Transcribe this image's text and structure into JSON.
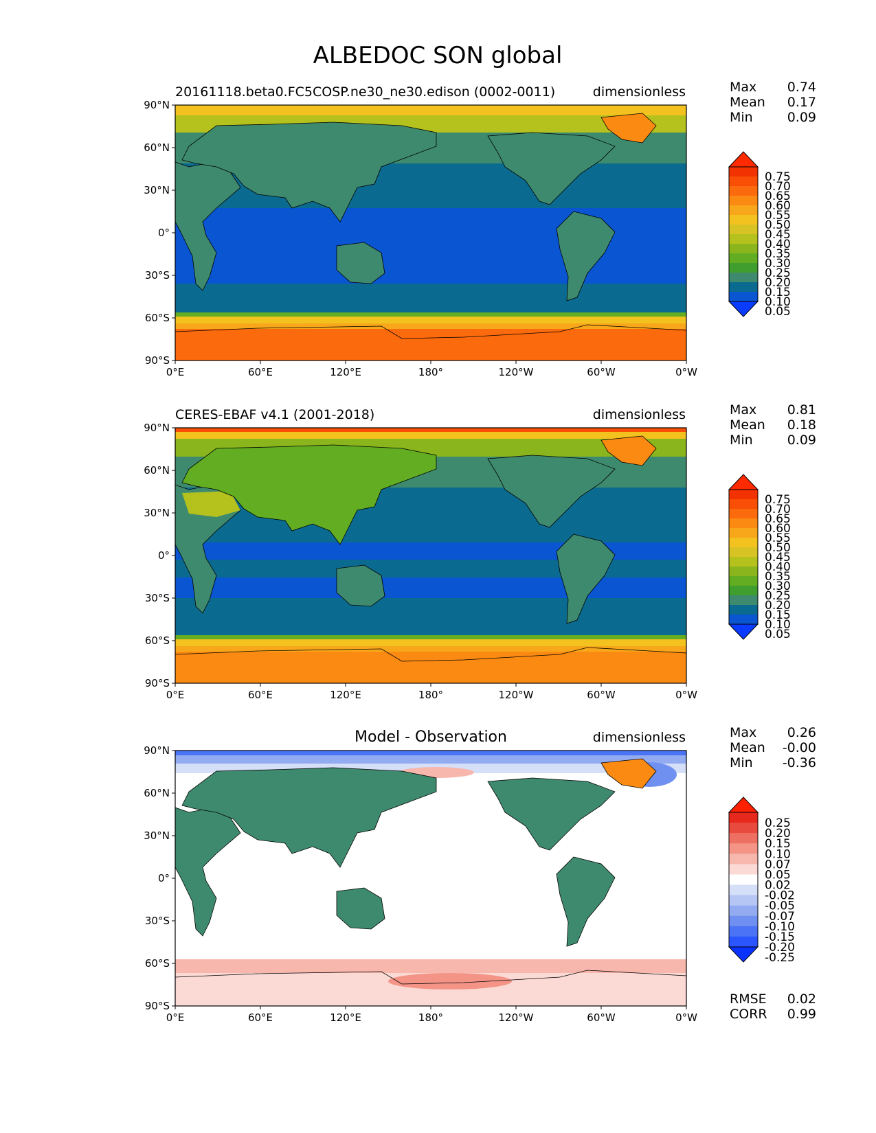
{
  "suptitle": "ALBEDOC SON global",
  "axes": {
    "lat_ticks": [
      "90°N",
      "60°N",
      "30°N",
      "0°",
      "30°S",
      "60°S",
      "90°S"
    ],
    "lon_ticks": [
      "0°E",
      "60°E",
      "120°E",
      "180°",
      "120°W",
      "60°W",
      "0°W"
    ]
  },
  "colors": {
    "field": [
      "#0a3cff",
      "#0a55d2",
      "#0b6a8f",
      "#3e8a6e",
      "#3f9e2e",
      "#62ad22",
      "#8bb51c",
      "#b5c21d",
      "#d8c324",
      "#f3c21f",
      "#f9a71a",
      "#fb8a13",
      "#fb6a0c",
      "#f84e05",
      "#f23200",
      "#ff2a00"
    ],
    "diff": [
      "#0a32ff",
      "#2a55ff",
      "#4a73f5",
      "#6f90f0",
      "#93abf1",
      "#b5c5f4",
      "#d6dff8",
      "#ffffff",
      "#fbd9d4",
      "#f7b7ad",
      "#f39487",
      "#ee7063",
      "#e94a3e",
      "#e7281d",
      "#ff2000"
    ]
  },
  "panels": [
    {
      "left_title": "20161118.beta0.FC5COSP.ne30_ne30.edison (0002-0011)",
      "center_title": "",
      "units": "dimensionless",
      "stats": [
        {
          "label": "Max",
          "value": "0.74"
        },
        {
          "label": "Mean",
          "value": "0.17"
        },
        {
          "label": "Min",
          "value": "0.09"
        }
      ],
      "colorbar": [
        "0.75",
        "0.70",
        "0.65",
        "0.60",
        "0.55",
        "0.50",
        "0.45",
        "0.40",
        "0.35",
        "0.30",
        "0.25",
        "0.20",
        "0.15",
        "0.10",
        "0.05"
      ]
    },
    {
      "left_title": "CERES-EBAF v4.1 (2001-2018)",
      "center_title": "",
      "units": "dimensionless",
      "stats": [
        {
          "label": "Max",
          "value": "0.81"
        },
        {
          "label": "Mean",
          "value": "0.18"
        },
        {
          "label": "Min",
          "value": "0.09"
        }
      ],
      "colorbar": [
        "0.75",
        "0.70",
        "0.65",
        "0.60",
        "0.55",
        "0.50",
        "0.45",
        "0.40",
        "0.35",
        "0.30",
        "0.25",
        "0.20",
        "0.15",
        "0.10",
        "0.05"
      ]
    },
    {
      "left_title": "",
      "center_title": "Model - Observation",
      "units": "dimensionless",
      "stats": [
        {
          "label": "Max",
          "value": "0.26"
        },
        {
          "label": "Mean",
          "value": "-0.00"
        },
        {
          "label": "Min",
          "value": "-0.36"
        }
      ],
      "colorbar": [
        "0.25",
        "0.20",
        "0.15",
        "0.10",
        "0.07",
        "0.05",
        "0.02",
        "-0.02",
        "-0.05",
        "-0.07",
        "-0.10",
        "-0.15",
        "-0.20",
        "-0.25"
      ],
      "metrics": [
        {
          "label": "RMSE",
          "value": "0.02"
        },
        {
          "label": "CORR",
          "value": "0.99"
        }
      ]
    }
  ],
  "chart_data": [
    {
      "type": "heatmap",
      "title": "20161118.beta0.FC5COSP.ne30_ne30.edison (0002-0011)",
      "xlim": [
        0,
        360
      ],
      "ylim": [
        -90,
        90
      ],
      "levels": [
        0.05,
        0.1,
        0.15,
        0.2,
        0.25,
        0.3,
        0.35,
        0.4,
        0.45,
        0.5,
        0.55,
        0.6,
        0.65,
        0.7,
        0.75
      ],
      "zonal_profile": {
        "lat": [
          90,
          80,
          70,
          60,
          50,
          40,
          30,
          20,
          10,
          0,
          -10,
          -20,
          -30,
          -40,
          -50,
          -60,
          -70,
          -80,
          -90
        ],
        "ocean_value": [
          0.52,
          0.5,
          0.35,
          0.22,
          0.2,
          0.15,
          0.12,
          0.09,
          0.09,
          0.09,
          0.09,
          0.11,
          0.14,
          0.15,
          0.16,
          0.5,
          0.66,
          0.7,
          0.7
        ]
      },
      "max": 0.74,
      "mean": 0.17,
      "min": 0.09
    },
    {
      "type": "heatmap",
      "title": "CERES-EBAF v4.1 (2001-2018)",
      "xlim": [
        0,
        360
      ],
      "ylim": [
        -90,
        90
      ],
      "levels": [
        0.05,
        0.1,
        0.15,
        0.2,
        0.25,
        0.3,
        0.35,
        0.4,
        0.45,
        0.5,
        0.55,
        0.6,
        0.65,
        0.7,
        0.75
      ],
      "zonal_profile": {
        "lat": [
          90,
          80,
          70,
          60,
          50,
          40,
          30,
          20,
          10,
          0,
          -10,
          -20,
          -30,
          -40,
          -50,
          -60,
          -70,
          -80,
          -90
        ],
        "ocean_value": [
          0.55,
          0.5,
          0.36,
          0.24,
          0.22,
          0.16,
          0.13,
          0.12,
          0.1,
          0.11,
          0.12,
          0.13,
          0.14,
          0.15,
          0.17,
          0.52,
          0.66,
          0.68,
          0.68
        ]
      },
      "max": 0.81,
      "mean": 0.18,
      "min": 0.09
    },
    {
      "type": "heatmap",
      "title": "Model - Observation",
      "xlim": [
        0,
        360
      ],
      "ylim": [
        -90,
        90
      ],
      "levels": [
        -0.25,
        -0.2,
        -0.15,
        -0.1,
        -0.07,
        -0.05,
        -0.02,
        0.02,
        0.05,
        0.07,
        0.1,
        0.15,
        0.2,
        0.25
      ],
      "zonal_profile": {
        "lat": [
          90,
          80,
          70,
          60,
          50,
          40,
          30,
          20,
          10,
          0,
          -10,
          -20,
          -30,
          -40,
          -50,
          -60,
          -70,
          -80,
          -90
        ],
        "ocean_value": [
          -0.1,
          -0.05,
          -0.02,
          0.0,
          0.0,
          0.0,
          0.0,
          0.0,
          0.0,
          0.0,
          0.0,
          0.0,
          0.0,
          0.0,
          0.0,
          0.05,
          0.05,
          0.02,
          0.02
        ]
      },
      "max": 0.26,
      "mean": -0.0,
      "min": -0.36,
      "rmse": 0.02,
      "corr": 0.99
    }
  ]
}
